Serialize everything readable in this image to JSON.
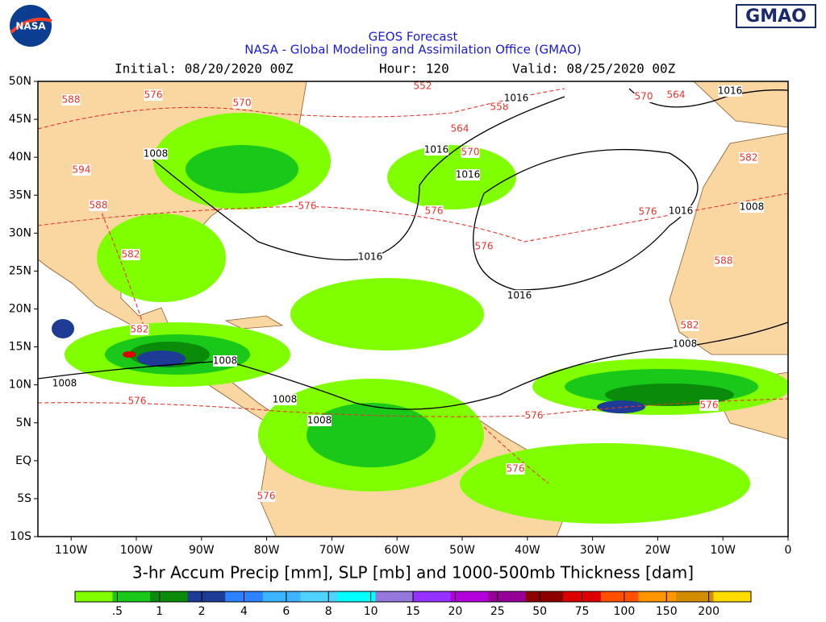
{
  "header": {
    "logo_left": "NASA",
    "logo_right": "GMAO",
    "title": "GEOS Forecast",
    "subtitle": "NASA - Global Modeling and Assimilation Office (GMAO)",
    "initial": "Initial: 08/20/2020 00Z",
    "hour": "Hour: 120",
    "valid": "Valid: 08/25/2020 00Z"
  },
  "map": {
    "lat_labels": [
      "50N",
      "45N",
      "40N",
      "35N",
      "30N",
      "25N",
      "20N",
      "15N",
      "10N",
      "5N",
      "EQ",
      "5S",
      "10S"
    ],
    "lon_labels": [
      "110W",
      "100W",
      "90W",
      "80W",
      "70W",
      "60W",
      "50W",
      "40W",
      "30W",
      "20W",
      "10W",
      "0"
    ],
    "contour_labels": [
      "588",
      "576",
      "570",
      "552",
      "558",
      "1016",
      "564",
      "570",
      "1016",
      "1016",
      "570",
      "564",
      "1016",
      "582",
      "1008",
      "594",
      "588",
      "576",
      "576",
      "576",
      "1016",
      "1008",
      "576",
      "582",
      "1016",
      "588",
      "1016",
      "582",
      "582",
      "1008",
      "1008",
      "1008",
      "576",
      "1008",
      "1008",
      "576",
      "576",
      "576",
      "576"
    ],
    "caption": "3-hr Accum Precip [mm], SLP [mb] and 1000-500mb Thickness [dam]"
  },
  "colorbar": {
    "colors": [
      "#80ff00",
      "#19c819",
      "#0a8c0a",
      "#1e3c96",
      "#2d82ff",
      "#3cb4ff",
      "#50d2ff",
      "#00ffff",
      "#9678dc",
      "#9632ff",
      "#b400dc",
      "#960096",
      "#8c0000",
      "#dc0000",
      "#ff5000",
      "#ff9600",
      "#d28c00",
      "#ffdc00"
    ],
    "labels": [
      ".5",
      "1",
      "2",
      "4",
      "6",
      "8",
      "10",
      "15",
      "20",
      "25",
      "50",
      "75",
      "100",
      "150",
      "200"
    ]
  }
}
